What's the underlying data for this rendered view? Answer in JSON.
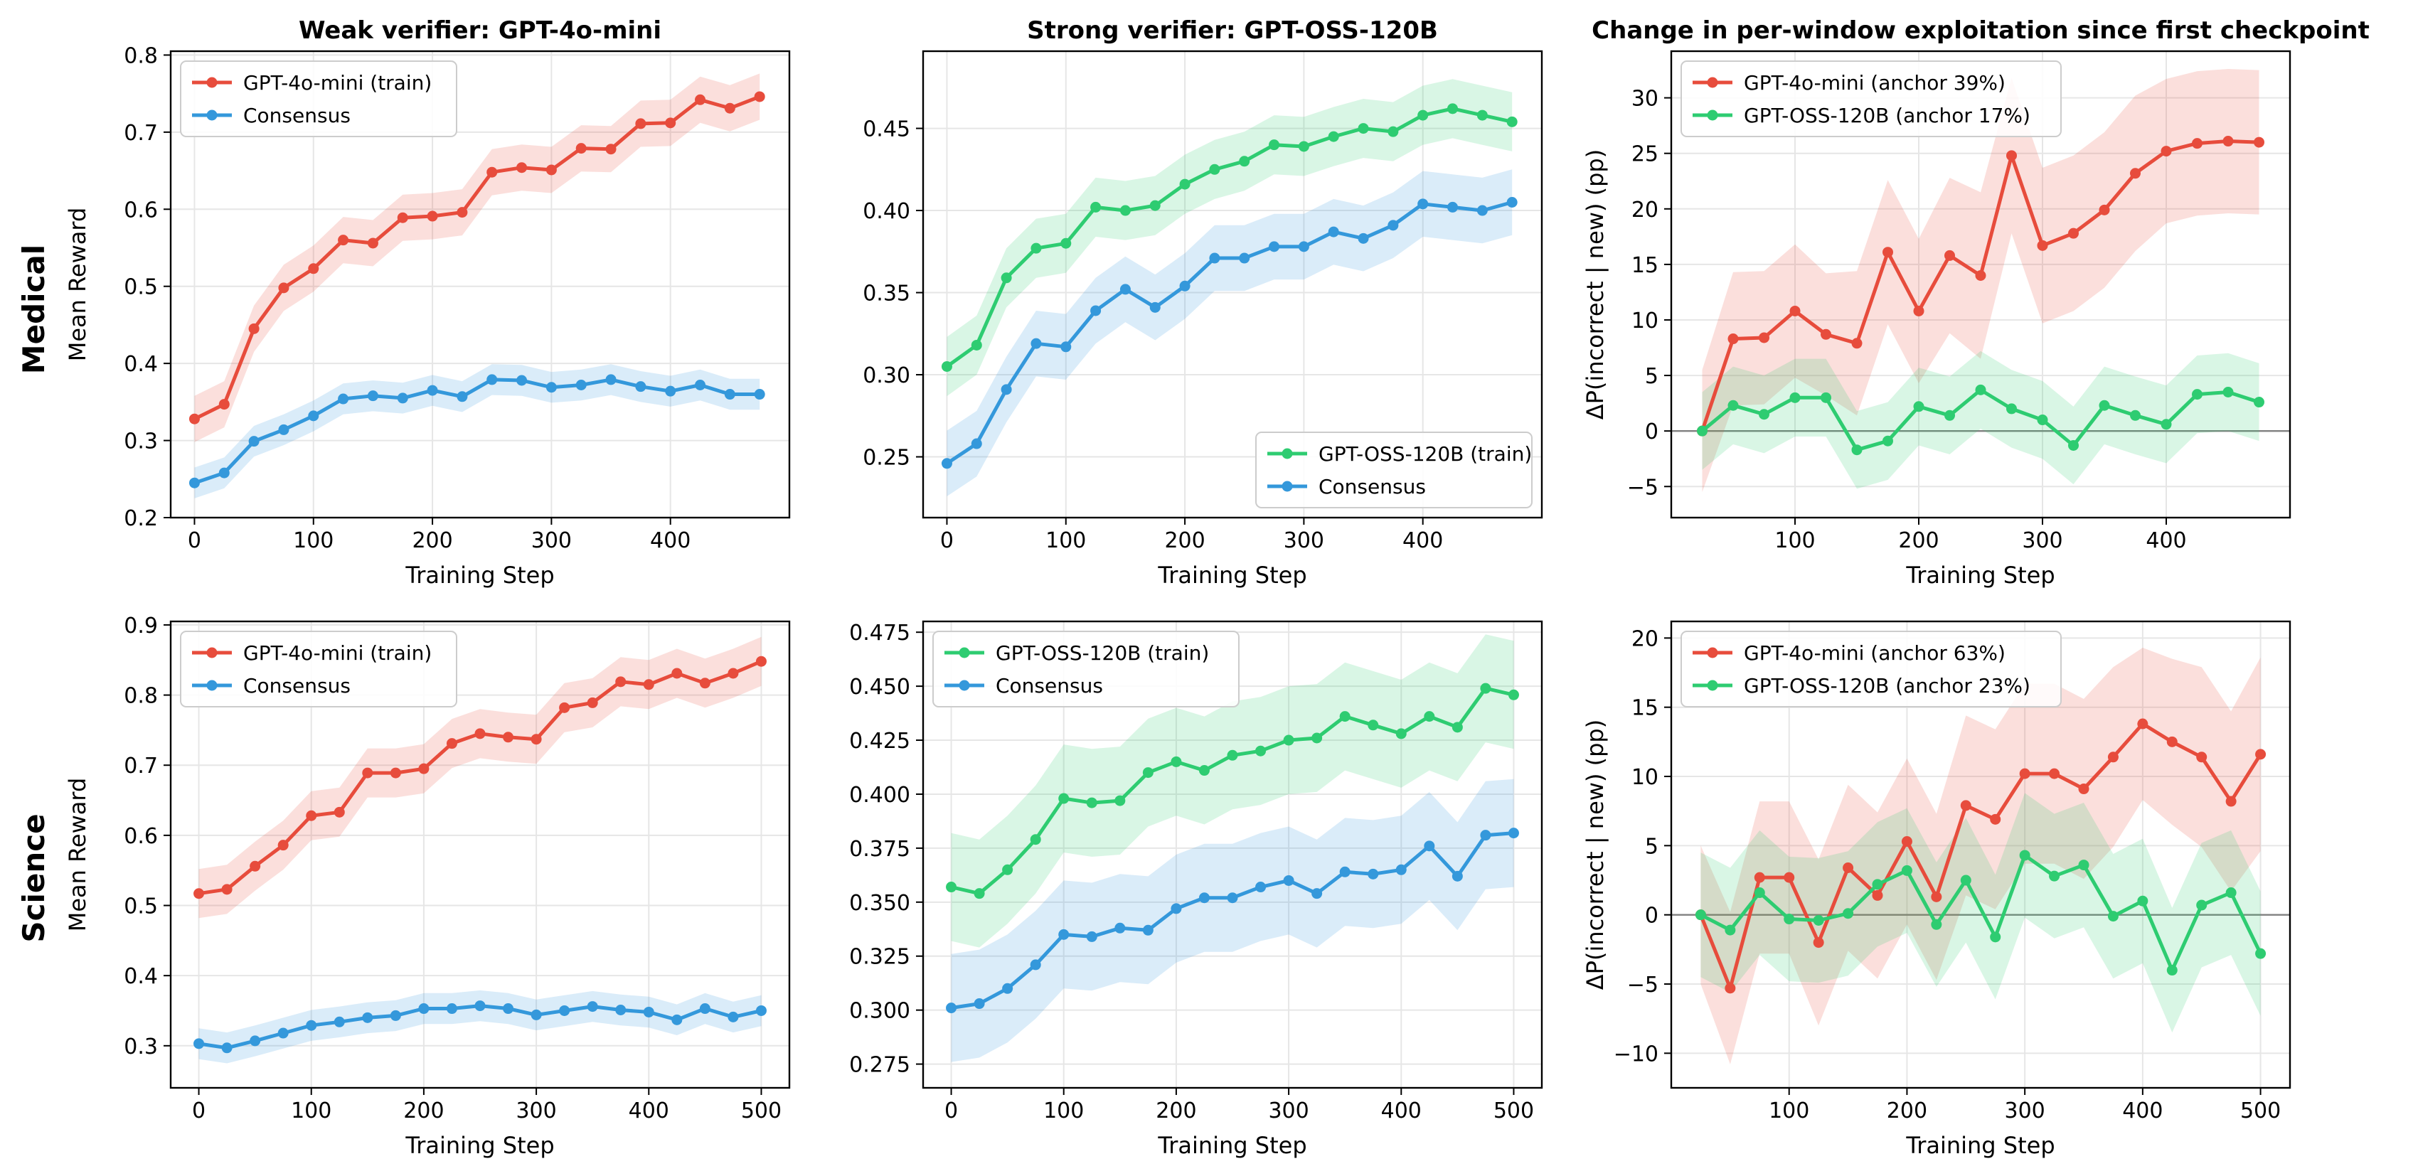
{
  "figure": {
    "row_labels": [
      "Medical",
      "Science"
    ],
    "colors": {
      "weak": "#e74c3c",
      "strong": "#2ecc71",
      "consensus": "#3498db"
    }
  },
  "chart_data": [
    {
      "type": "line",
      "title": "Weak verifier: GPT-4o-mini",
      "xlabel": "Training Step",
      "ylabel": "Mean Reward",
      "xlim": [
        -20,
        500
      ],
      "ylim": [
        0.2,
        0.805
      ],
      "xticks": [
        0,
        100,
        200,
        300,
        400
      ],
      "yticks": [
        0.2,
        0.3,
        0.4,
        0.5,
        0.6,
        0.7,
        0.8
      ],
      "grid": true,
      "legend": "top-left",
      "x": [
        0,
        25,
        50,
        75,
        100,
        125,
        150,
        175,
        200,
        225,
        250,
        275,
        300,
        325,
        350,
        375,
        400,
        425,
        450,
        475
      ],
      "series": [
        {
          "name": "GPT-4o-mini (train)",
          "color": "#e74c3c",
          "values": [
            0.328,
            0.347,
            0.445,
            0.498,
            0.523,
            0.56,
            0.556,
            0.589,
            0.591,
            0.596,
            0.648,
            0.654,
            0.651,
            0.679,
            0.678,
            0.711,
            0.712,
            0.742,
            0.731,
            0.746
          ],
          "band": 0.03
        },
        {
          "name": "Consensus",
          "color": "#3498db",
          "values": [
            0.245,
            0.258,
            0.299,
            0.314,
            0.332,
            0.354,
            0.358,
            0.355,
            0.365,
            0.357,
            0.379,
            0.378,
            0.369,
            0.372,
            0.379,
            0.37,
            0.364,
            0.372,
            0.36,
            0.36
          ],
          "band": 0.02
        }
      ]
    },
    {
      "type": "line",
      "title": "Strong verifier: GPT-OSS-120B",
      "xlabel": "Training Step",
      "ylabel": "",
      "xlim": [
        -20,
        500
      ],
      "ylim": [
        0.213,
        0.497
      ],
      "xticks": [
        0,
        100,
        200,
        300,
        400
      ],
      "yticks": [
        0.25,
        0.3,
        0.35,
        0.4,
        0.45
      ],
      "grid": true,
      "legend": "bottom-right",
      "x": [
        0,
        25,
        50,
        75,
        100,
        125,
        150,
        175,
        200,
        225,
        250,
        275,
        300,
        325,
        350,
        375,
        400,
        425,
        450,
        475
      ],
      "series": [
        {
          "name": "GPT-OSS-120B (train)",
          "color": "#2ecc71",
          "values": [
            0.305,
            0.318,
            0.359,
            0.377,
            0.38,
            0.402,
            0.4,
            0.403,
            0.416,
            0.425,
            0.43,
            0.44,
            0.439,
            0.445,
            0.45,
            0.448,
            0.458,
            0.462,
            0.458,
            0.454
          ],
          "band": 0.018
        },
        {
          "name": "Consensus",
          "color": "#3498db",
          "values": [
            0.246,
            0.258,
            0.291,
            0.319,
            0.317,
            0.339,
            0.352,
            0.341,
            0.354,
            0.371,
            0.371,
            0.378,
            0.378,
            0.387,
            0.383,
            0.391,
            0.404,
            0.402,
            0.4,
            0.405
          ],
          "band": 0.02
        }
      ]
    },
    {
      "type": "line",
      "title": "Change in per-window exploitation since first checkpoint",
      "xlabel": "Training Step",
      "ylabel": "ΔP(incorrect | new) (pp)",
      "xlim": [
        0,
        500
      ],
      "ylim": [
        -7.8,
        34.2
      ],
      "xticks": [
        100,
        200,
        300,
        400
      ],
      "yticks": [
        -5,
        0,
        5,
        10,
        15,
        20,
        25,
        30
      ],
      "grid": true,
      "zero_line": true,
      "legend": "top-left",
      "x": [
        25,
        50,
        75,
        100,
        125,
        150,
        175,
        200,
        225,
        250,
        275,
        300,
        325,
        350,
        375,
        400,
        425,
        450,
        475
      ],
      "series": [
        {
          "name": "GPT-4o-mini (anchor 39%)",
          "color": "#e74c3c",
          "values": [
            0.0,
            8.3,
            8.4,
            10.8,
            8.7,
            7.9,
            16.1,
            10.8,
            15.8,
            14.0,
            24.8,
            16.7,
            17.8,
            19.9,
            23.2,
            25.2,
            25.9,
            26.1,
            26.0
          ],
          "band": [
            5.5,
            6.0,
            6.0,
            6.0,
            5.5,
            6.5,
            6.5,
            6.5,
            7.0,
            7.5,
            7.0,
            7.0,
            7.0,
            7.0,
            7.0,
            6.5,
            6.5,
            6.5,
            6.5
          ]
        },
        {
          "name": "GPT-OSS-120B (anchor 17%)",
          "color": "#2ecc71",
          "values": [
            0.0,
            2.3,
            1.5,
            3.0,
            3.0,
            -1.7,
            -0.9,
            2.2,
            1.4,
            3.7,
            2.0,
            1.0,
            -1.3,
            2.3,
            1.4,
            0.6,
            3.3,
            3.5,
            2.6
          ],
          "band": 3.5
        }
      ]
    },
    {
      "type": "line",
      "title": "",
      "xlabel": "Training Step",
      "ylabel": "Mean Reward",
      "xlim": [
        -25,
        525
      ],
      "ylim": [
        0.24,
        0.905
      ],
      "xticks": [
        0,
        100,
        200,
        300,
        400,
        500
      ],
      "yticks": [
        0.3,
        0.4,
        0.5,
        0.6,
        0.7,
        0.8,
        0.9
      ],
      "grid": true,
      "legend": "top-left",
      "x": [
        0,
        25,
        50,
        75,
        100,
        125,
        150,
        175,
        200,
        225,
        250,
        275,
        300,
        325,
        350,
        375,
        400,
        425,
        450,
        475,
        500
      ],
      "series": [
        {
          "name": "GPT-4o-mini (train)",
          "color": "#e74c3c",
          "values": [
            0.517,
            0.523,
            0.556,
            0.586,
            0.628,
            0.633,
            0.689,
            0.689,
            0.695,
            0.731,
            0.745,
            0.74,
            0.737,
            0.782,
            0.789,
            0.819,
            0.815,
            0.831,
            0.817,
            0.831,
            0.848
          ],
          "band": 0.035
        },
        {
          "name": "Consensus",
          "color": "#3498db",
          "values": [
            0.303,
            0.297,
            0.307,
            0.318,
            0.329,
            0.334,
            0.34,
            0.343,
            0.353,
            0.353,
            0.357,
            0.353,
            0.344,
            0.35,
            0.356,
            0.351,
            0.348,
            0.337,
            0.353,
            0.341,
            0.35
          ],
          "band": 0.022
        }
      ]
    },
    {
      "type": "line",
      "title": "",
      "xlabel": "Training Step",
      "ylabel": "",
      "xlim": [
        -25,
        525
      ],
      "ylim": [
        0.264,
        0.48
      ],
      "xticks": [
        0,
        100,
        200,
        300,
        400,
        500
      ],
      "yticks": [
        0.275,
        0.3,
        0.325,
        0.35,
        0.375,
        0.4,
        0.425,
        0.45,
        0.475
      ],
      "grid": true,
      "legend": "top-left",
      "x": [
        0,
        25,
        50,
        75,
        100,
        125,
        150,
        175,
        200,
        225,
        250,
        275,
        300,
        325,
        350,
        375,
        400,
        425,
        450,
        475,
        500
      ],
      "series": [
        {
          "name": "GPT-OSS-120B (train)",
          "color": "#2ecc71",
          "values": [
            0.357,
            0.354,
            0.365,
            0.379,
            0.398,
            0.396,
            0.397,
            0.41,
            0.415,
            0.411,
            0.418,
            0.42,
            0.425,
            0.426,
            0.436,
            0.432,
            0.428,
            0.436,
            0.431,
            0.449,
            0.446
          ],
          "band": 0.025
        },
        {
          "name": "Consensus",
          "color": "#3498db",
          "values": [
            0.301,
            0.303,
            0.31,
            0.321,
            0.335,
            0.334,
            0.338,
            0.337,
            0.347,
            0.352,
            0.352,
            0.357,
            0.36,
            0.354,
            0.364,
            0.363,
            0.365,
            0.376,
            0.362,
            0.381,
            0.382
          ],
          "band": 0.025
        }
      ]
    },
    {
      "type": "line",
      "title": "",
      "xlabel": "Training Step",
      "ylabel": "ΔP(incorrect | new) (pp)",
      "xlim": [
        0,
        525
      ],
      "ylim": [
        -12.5,
        21.2
      ],
      "xticks": [
        100,
        200,
        300,
        400,
        500
      ],
      "yticks": [
        -10,
        -5,
        0,
        5,
        10,
        15,
        20
      ],
      "grid": true,
      "zero_line": true,
      "legend": "top-left",
      "x": [
        25,
        50,
        75,
        100,
        125,
        150,
        175,
        200,
        225,
        250,
        275,
        300,
        325,
        350,
        375,
        400,
        425,
        450,
        475,
        500
      ],
      "series": [
        {
          "name": "GPT-4o-mini (anchor 63%)",
          "color": "#e74c3c",
          "values": [
            0.0,
            -5.3,
            2.7,
            2.7,
            -2.0,
            3.4,
            1.4,
            5.3,
            1.3,
            7.9,
            6.9,
            10.2,
            10.2,
            9.1,
            11.4,
            13.8,
            12.5,
            11.4,
            8.2,
            11.6
          ],
          "band": [
            5.0,
            5.5,
            5.5,
            5.5,
            6.0,
            6.0,
            6.0,
            6.0,
            6.0,
            6.5,
            6.5,
            6.5,
            6.5,
            6.5,
            6.5,
            5.5,
            6.0,
            6.5,
            6.5,
            7.0
          ]
        },
        {
          "name": "GPT-OSS-120B (anchor 23%)",
          "color": "#2ecc71",
          "values": [
            0.0,
            -1.1,
            1.6,
            -0.3,
            -0.4,
            0.1,
            2.2,
            3.2,
            -0.7,
            2.5,
            -1.6,
            4.3,
            2.8,
            3.6,
            -0.1,
            1.0,
            -4.0,
            0.7,
            1.6,
            -2.8
          ],
          "band": 4.5
        }
      ]
    }
  ]
}
